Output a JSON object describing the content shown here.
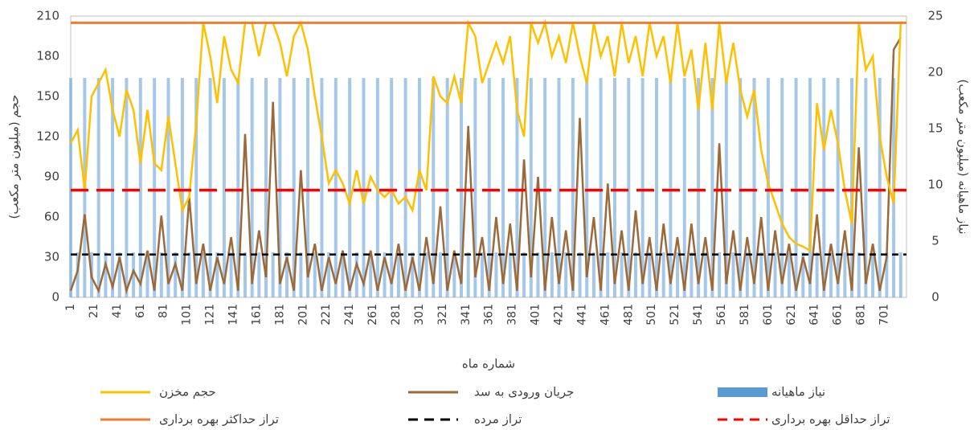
{
  "chart_data": {
    "type": "combo",
    "x_label": "شماره ماه",
    "y_label": "حجم (میلیون متر مکعب)",
    "y2_label": "نیاز ماهیانه (میلیون متر مکعب)",
    "xlim": [
      1,
      720
    ],
    "xticks": [
      1,
      21,
      41,
      61,
      81,
      101,
      121,
      141,
      161,
      181,
      201,
      221,
      241,
      261,
      281,
      301,
      321,
      341,
      361,
      381,
      401,
      421,
      441,
      461,
      481,
      501,
      521,
      541,
      561,
      581,
      601,
      621,
      641,
      661,
      681,
      701
    ],
    "ylim": [
      0,
      210
    ],
    "yticks": [
      0,
      30,
      60,
      90,
      120,
      150,
      180,
      210
    ],
    "y2lim": [
      0,
      25
    ],
    "y2ticks": [
      0,
      5,
      10,
      15,
      20,
      25
    ],
    "x": [
      1,
      7,
      13,
      19,
      25,
      31,
      37,
      43,
      49,
      55,
      61,
      67,
      73,
      79,
      85,
      91,
      97,
      103,
      109,
      115,
      121,
      127,
      133,
      139,
      145,
      151,
      157,
      163,
      169,
      175,
      181,
      187,
      193,
      199,
      205,
      211,
      217,
      223,
      229,
      235,
      241,
      247,
      253,
      259,
      265,
      271,
      277,
      283,
      289,
      295,
      301,
      307,
      313,
      319,
      325,
      331,
      337,
      343,
      349,
      355,
      361,
      367,
      373,
      379,
      385,
      391,
      397,
      403,
      409,
      415,
      421,
      427,
      433,
      439,
      445,
      451,
      457,
      463,
      469,
      475,
      481,
      487,
      493,
      499,
      505,
      511,
      517,
      523,
      529,
      535,
      541,
      547,
      553,
      559,
      565,
      571,
      577,
      583,
      589,
      595,
      601,
      607,
      613,
      619,
      625,
      631,
      637,
      643,
      649,
      655,
      661,
      667,
      673,
      679,
      685,
      691,
      697,
      703,
      709,
      715
    ],
    "series": [
      {
        "name": "نیاز ماهیانه",
        "color": "#5b9bd5",
        "type": "bar",
        "axis": "y2",
        "values": [
          19.5,
          4,
          19.5,
          4,
          19.5,
          4,
          19.5,
          4,
          19.5,
          4,
          19.5,
          4,
          19.5,
          4,
          19.5,
          4,
          19.5,
          4,
          19.5,
          4,
          19.5,
          4,
          19.5,
          4,
          19.5,
          4,
          19.5,
          4,
          19.5,
          4,
          19.5,
          4,
          19.5,
          4,
          19.5,
          4,
          19.5,
          4,
          19.5,
          4,
          19.5,
          4,
          19.5,
          4,
          19.5,
          4,
          19.5,
          4,
          19.5,
          4,
          19.5,
          4,
          19.5,
          4,
          19.5,
          4,
          19.5,
          4,
          19.5,
          4,
          19.5,
          4,
          19.5,
          4,
          19.5,
          4,
          19.5,
          4,
          19.5,
          4,
          19.5,
          4,
          19.5,
          4,
          19.5,
          4,
          19.5,
          4,
          19.5,
          4,
          19.5,
          4,
          19.5,
          4,
          19.5,
          4,
          19.5,
          4,
          19.5,
          4,
          19.5,
          4,
          19.5,
          4,
          19.5,
          4,
          19.5,
          4,
          19.5,
          4,
          19.5,
          4,
          19.5,
          4,
          19.5,
          4,
          19.5,
          4,
          19.5,
          4,
          19.5,
          4,
          19.5,
          4,
          19.5,
          4,
          19.5,
          4,
          19.5,
          4
        ]
      },
      {
        "name": "جریان ورودی به سد",
        "color": "#9c6a3a",
        "type": "line",
        "values": [
          5,
          20,
          62,
          15,
          5,
          25,
          8,
          30,
          5,
          20,
          10,
          35,
          5,
          61,
          10,
          25,
          5,
          75,
          10,
          40,
          5,
          30,
          10,
          45,
          5,
          122,
          10,
          50,
          15,
          146,
          10,
          30,
          5,
          95,
          15,
          40,
          5,
          30,
          10,
          35,
          5,
          25,
          10,
          35,
          5,
          30,
          10,
          40,
          5,
          30,
          5,
          45,
          10,
          68,
          5,
          35,
          10,
          128,
          15,
          45,
          5,
          60,
          10,
          55,
          5,
          103,
          15,
          90,
          5,
          60,
          10,
          50,
          5,
          134,
          15,
          60,
          5,
          85,
          10,
          50,
          5,
          65,
          10,
          45,
          5,
          55,
          10,
          45,
          5,
          55,
          10,
          45,
          5,
          115,
          10,
          50,
          5,
          45,
          10,
          60,
          5,
          50,
          10,
          40,
          5,
          30,
          10,
          62,
          5,
          40,
          10,
          50,
          5,
          112,
          10,
          40,
          5,
          30,
          185,
          194
        ]
      },
      {
        "name": "حجم مخزن",
        "color": "#ffc000",
        "type": "line",
        "values": [
          115,
          125,
          80,
          150,
          160,
          170,
          140,
          120,
          155,
          140,
          100,
          140,
          100,
          95,
          135,
          100,
          65,
          75,
          130,
          205,
          180,
          145,
          195,
          170,
          160,
          205,
          205,
          180,
          205,
          205,
          190,
          165,
          195,
          205,
          185,
          150,
          120,
          85,
          95,
          85,
          70,
          95,
          70,
          90,
          80,
          75,
          80,
          70,
          75,
          65,
          95,
          80,
          165,
          150,
          145,
          165,
          145,
          205,
          195,
          160,
          175,
          190,
          175,
          195,
          140,
          120,
          205,
          190,
          205,
          180,
          195,
          175,
          205,
          180,
          160,
          205,
          180,
          195,
          165,
          205,
          175,
          195,
          165,
          205,
          180,
          195,
          160,
          205,
          165,
          185,
          140,
          190,
          140,
          205,
          160,
          190,
          155,
          135,
          155,
          110,
          85,
          70,
          55,
          45,
          40,
          38,
          35,
          145,
          110,
          140,
          115,
          80,
          55,
          205,
          170,
          180,
          120,
          90,
          70,
          205
        ]
      }
    ],
    "reference_lines": [
      {
        "name": "تراز حداقل بهره برداری",
        "color": "#ff0000",
        "value": 80,
        "dashed": true
      },
      {
        "name": "تراز مرده",
        "color": "#000000",
        "value": 32,
        "dashed": true
      },
      {
        "name": "تراز حداکثر بهره برداری",
        "color": "#ed7d31",
        "value": 205,
        "dashed": false
      }
    ]
  }
}
